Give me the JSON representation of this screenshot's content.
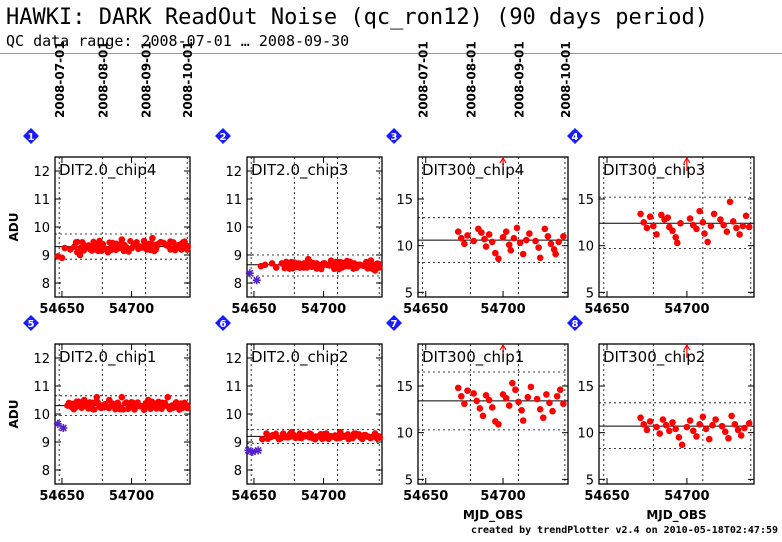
{
  "header": {
    "title": "HAWKI: DARK ReadOut Noise (qc_ron12) (90 days period)",
    "subtitle": "QC data range: 2008-07-01 … 2008-09-30"
  },
  "footer": "created by trendPlotter v2.4 on 2010-05-18T02:47:59",
  "colors": {
    "point": "#ff0000",
    "outlier": "#5522cc",
    "badge": "#1a1aff",
    "line": "#000000"
  },
  "date_labels": [
    "2008-07-01",
    "2008-08-01",
    "2008-09-01",
    "2008-10-01"
  ],
  "date_positions_mjd": [
    54648,
    54679,
    54710,
    54740
  ],
  "chart_data": [
    {
      "type": "scatter",
      "badge": "1",
      "title": "DIT2.0_chip4",
      "ylabel": "ADU",
      "xlabel": "",
      "xlim": [
        54645,
        54742
      ],
      "ylim": [
        7.5,
        12.5
      ],
      "xticks": [
        54650,
        54700
      ],
      "yticks": [
        8,
        9,
        10,
        11,
        12
      ],
      "median": 9.3,
      "band": [
        8.85,
        9.75
      ],
      "outliers": [],
      "dense": [
        54660,
        54741
      ],
      "points": [
        [
          54647,
          8.95
        ],
        [
          54650,
          8.9
        ],
        [
          54652,
          9.25
        ],
        [
          54656,
          9.2
        ],
        [
          54659,
          9.3
        ],
        [
          54661,
          9.1
        ],
        [
          54663,
          9.0
        ],
        [
          54666,
          9.35
        ],
        [
          54670,
          9.25
        ],
        [
          54672,
          9.3
        ],
        [
          54675,
          9.4
        ],
        [
          54676,
          9.15
        ],
        [
          54677,
          9.5
        ],
        [
          54679,
          9.25
        ],
        [
          54683,
          9.1
        ],
        [
          54686,
          9.3
        ],
        [
          54689,
          9.4
        ],
        [
          54691,
          9.25
        ],
        [
          54693,
          9.55
        ],
        [
          54695,
          9.35
        ],
        [
          54697,
          9.2
        ],
        [
          54702,
          9.4
        ],
        [
          54706,
          9.3
        ],
        [
          54709,
          9.5
        ],
        [
          54711,
          9.2
        ],
        [
          54713,
          9.4
        ],
        [
          54715,
          9.6
        ],
        [
          54718,
          9.3
        ],
        [
          54725,
          9.35
        ],
        [
          54728,
          9.2
        ],
        [
          54730,
          9.45
        ],
        [
          54732,
          9.3
        ],
        [
          54734,
          9.25
        ],
        [
          54736,
          9.4
        ],
        [
          54738,
          9.3
        ],
        [
          54740,
          9.2
        ]
      ]
    },
    {
      "type": "scatter",
      "badge": "2",
      "title": "DIT2.0_chip3",
      "ylabel": "",
      "xlabel": "",
      "xlim": [
        54645,
        54742
      ],
      "ylim": [
        7.5,
        12.5
      ],
      "xticks": [
        54650,
        54700
      ],
      "yticks": [
        8,
        9,
        10,
        11,
        12
      ],
      "median": 8.65,
      "band": [
        8.25,
        9.0
      ],
      "outliers": [
        [
          54647,
          8.35
        ],
        [
          54652,
          8.1
        ]
      ],
      "dense": [
        54672,
        54741
      ],
      "points": [
        [
          54655,
          8.6
        ],
        [
          54658,
          8.65
        ],
        [
          54663,
          8.7
        ],
        [
          54666,
          8.55
        ],
        [
          54670,
          8.7
        ],
        [
          54674,
          8.6
        ],
        [
          54677,
          8.75
        ],
        [
          54680,
          8.7
        ],
        [
          54683,
          8.55
        ],
        [
          54686,
          8.7
        ],
        [
          54689,
          8.85
        ],
        [
          54692,
          8.6
        ],
        [
          54695,
          8.7
        ],
        [
          54700,
          8.65
        ],
        [
          54705,
          8.7
        ],
        [
          54708,
          8.6
        ],
        [
          54712,
          8.75
        ],
        [
          54715,
          8.65
        ],
        [
          54718,
          8.6
        ],
        [
          54722,
          8.7
        ],
        [
          54726,
          8.65
        ],
        [
          54730,
          8.6
        ],
        [
          54734,
          8.8
        ],
        [
          54737,
          8.45
        ],
        [
          54740,
          8.55
        ]
      ]
    },
    {
      "type": "scatter",
      "badge": "3",
      "title": "DIT300_chip4",
      "ylabel": "",
      "xlabel": "",
      "xlim": [
        54645,
        54742
      ],
      "ylim": [
        4.5,
        19.5
      ],
      "xticks": [
        54650,
        54700
      ],
      "yticks": [
        5,
        10,
        15
      ],
      "median": 10.6,
      "band": [
        8.2,
        13.0
      ],
      "outliers": [],
      "dense": [],
      "arrow": 54700,
      "points": [
        [
          54671,
          11.5
        ],
        [
          54673,
          10.8
        ],
        [
          54675,
          10.2
        ],
        [
          54677,
          11.1
        ],
        [
          54681,
          10.5
        ],
        [
          54684,
          11.8
        ],
        [
          54686,
          11.4
        ],
        [
          54688,
          10.7
        ],
        [
          54689,
          9.9
        ],
        [
          54691,
          11.2
        ],
        [
          54693,
          10.4
        ],
        [
          54695,
          9.2
        ],
        [
          54697,
          8.6
        ],
        [
          54700,
          10.9
        ],
        [
          54702,
          11.5
        ],
        [
          54704,
          10.1
        ],
        [
          54705,
          9.5
        ],
        [
          54707,
          10.8
        ],
        [
          54709,
          11.9
        ],
        [
          54711,
          10.3
        ],
        [
          54713,
          9.1
        ],
        [
          54715,
          10.6
        ],
        [
          54717,
          11.3
        ],
        [
          54721,
          10.5
        ],
        [
          54723,
          9.8
        ],
        [
          54724,
          8.7
        ],
        [
          54727,
          11.8
        ],
        [
          54729,
          11.0
        ],
        [
          54731,
          10.2
        ],
        [
          54733,
          9.6
        ],
        [
          54734,
          9.1
        ],
        [
          54736,
          10.4
        ],
        [
          54739,
          11.0
        ]
      ]
    },
    {
      "type": "scatter",
      "badge": "4",
      "title": "DIT300_chip3",
      "ylabel": "",
      "xlabel": "",
      "xlim": [
        54645,
        54742
      ],
      "ylim": [
        4.5,
        19.5
      ],
      "xticks": [
        54650,
        54700
      ],
      "yticks": [
        5,
        10,
        15
      ],
      "median": 12.4,
      "band": [
        9.7,
        15.2
      ],
      "outliers": [],
      "dense": [],
      "arrow": 54700,
      "points": [
        [
          54671,
          13.4
        ],
        [
          54673,
          12.5
        ],
        [
          54675,
          11.9
        ],
        [
          54677,
          13.1
        ],
        [
          54679,
          12.1
        ],
        [
          54681,
          11.2
        ],
        [
          54684,
          13.3
        ],
        [
          54686,
          12.8
        ],
        [
          54688,
          13.0
        ],
        [
          54689,
          12.0
        ],
        [
          54691,
          11.6
        ],
        [
          54693,
          10.9
        ],
        [
          54694,
          10.3
        ],
        [
          54696,
          12.4
        ],
        [
          54702,
          12.9
        ],
        [
          54704,
          12.2
        ],
        [
          54706,
          11.8
        ],
        [
          54708,
          13.7
        ],
        [
          54710,
          12.5
        ],
        [
          54711,
          11.3
        ],
        [
          54713,
          10.4
        ],
        [
          54715,
          12.1
        ],
        [
          54717,
          13.4
        ],
        [
          54721,
          12.8
        ],
        [
          54723,
          12.2
        ],
        [
          54725,
          11.5
        ],
        [
          54727,
          14.7
        ],
        [
          54729,
          12.6
        ],
        [
          54731,
          11.9
        ],
        [
          54733,
          11.2
        ],
        [
          54735,
          12.1
        ],
        [
          54737,
          13.2
        ],
        [
          54739,
          12.0
        ]
      ]
    },
    {
      "type": "scatter",
      "badge": "5",
      "title": "DIT2.0_chip1",
      "ylabel": "ADU",
      "xlabel": "",
      "xlim": [
        54645,
        54742
      ],
      "ylim": [
        7.5,
        12.5
      ],
      "xticks": [
        54650,
        54700
      ],
      "yticks": [
        8,
        9,
        10,
        11,
        12
      ],
      "median": 10.3,
      "band": [
        9.95,
        10.65
      ],
      "outliers": [
        [
          54647,
          9.65
        ],
        [
          54651,
          9.5
        ]
      ],
      "dense": [
        54655,
        54741
      ],
      "points": [
        [
          54654,
          10.3
        ],
        [
          54657,
          10.25
        ],
        [
          54660,
          10.4
        ],
        [
          54663,
          10.3
        ],
        [
          54666,
          10.5
        ],
        [
          54669,
          10.2
        ],
        [
          54672,
          10.4
        ],
        [
          54675,
          10.6
        ],
        [
          54678,
          10.3
        ],
        [
          54681,
          10.35
        ],
        [
          54684,
          10.5
        ],
        [
          54687,
          10.3
        ],
        [
          54690,
          10.4
        ],
        [
          54693,
          10.6
        ],
        [
          54697,
          10.35
        ],
        [
          54701,
          10.4
        ],
        [
          54705,
          10.3
        ],
        [
          54709,
          10.15
        ],
        [
          54712,
          10.5
        ],
        [
          54715,
          10.3
        ],
        [
          54718,
          10.2
        ],
        [
          54722,
          10.4
        ],
        [
          54726,
          10.6
        ],
        [
          54729,
          10.3
        ],
        [
          54732,
          10.4
        ],
        [
          54735,
          10.25
        ],
        [
          54738,
          10.4
        ],
        [
          54740,
          10.3
        ]
      ]
    },
    {
      "type": "scatter",
      "badge": "6",
      "title": "DIT2.0_chip2",
      "ylabel": "",
      "xlabel": "",
      "xlim": [
        54645,
        54742
      ],
      "ylim": [
        7.5,
        12.5
      ],
      "xticks": [
        54650,
        54700
      ],
      "yticks": [
        8,
        9,
        10,
        11,
        12
      ],
      "median": 9.2,
      "band": [
        8.95,
        9.45
      ],
      "outliers": [
        [
          54646,
          8.7
        ],
        [
          54649,
          8.65
        ],
        [
          54653,
          8.7
        ]
      ],
      "dense": [
        54660,
        54741
      ],
      "points": [
        [
          54656,
          9.1
        ],
        [
          54659,
          9.3
        ],
        [
          54662,
          9.2
        ],
        [
          54665,
          9.25
        ],
        [
          54668,
          9.1
        ],
        [
          54671,
          9.3
        ],
        [
          54674,
          9.2
        ],
        [
          54677,
          9.35
        ],
        [
          54680,
          9.15
        ],
        [
          54683,
          9.3
        ],
        [
          54686,
          9.2
        ],
        [
          54690,
          9.3
        ],
        [
          54694,
          9.1
        ],
        [
          54698,
          9.25
        ],
        [
          54702,
          9.3
        ],
        [
          54706,
          9.2
        ],
        [
          54709,
          9.15
        ],
        [
          54712,
          9.35
        ],
        [
          54715,
          9.2
        ],
        [
          54718,
          9.1
        ],
        [
          54722,
          9.3
        ],
        [
          54726,
          9.2
        ],
        [
          54730,
          9.25
        ],
        [
          54734,
          9.15
        ],
        [
          54737,
          9.3
        ],
        [
          54740,
          9.2
        ]
      ]
    },
    {
      "type": "scatter",
      "badge": "7",
      "title": "DIT300_chip1",
      "ylabel": "",
      "xlabel": "MJD_OBS",
      "xlim": [
        54645,
        54742
      ],
      "ylim": [
        4.5,
        19.5
      ],
      "xticks": [
        54650,
        54700
      ],
      "yticks": [
        5,
        10,
        15
      ],
      "median": 13.4,
      "band": [
        10.3,
        16.5
      ],
      "outliers": [],
      "dense": [],
      "arrow": 54700,
      "points": [
        [
          54671,
          14.8
        ],
        [
          54673,
          13.9
        ],
        [
          54675,
          13.1
        ],
        [
          54677,
          14.5
        ],
        [
          54681,
          14.2
        ],
        [
          54683,
          13.4
        ],
        [
          54685,
          12.6
        ],
        [
          54687,
          11.8
        ],
        [
          54689,
          14.0
        ],
        [
          54691,
          13.5
        ],
        [
          54693,
          12.7
        ],
        [
          54695,
          11.2
        ],
        [
          54697,
          10.9
        ],
        [
          54700,
          14.1
        ],
        [
          54702,
          13.7
        ],
        [
          54704,
          12.9
        ],
        [
          54706,
          15.3
        ],
        [
          54708,
          14.6
        ],
        [
          54710,
          13.3
        ],
        [
          54712,
          12.4
        ],
        [
          54713,
          11.3
        ],
        [
          54716,
          13.8
        ],
        [
          54718,
          14.9
        ],
        [
          54722,
          13.6
        ],
        [
          54724,
          12.5
        ],
        [
          54726,
          11.6
        ],
        [
          54728,
          14.1
        ],
        [
          54730,
          13.2
        ],
        [
          54732,
          12.3
        ],
        [
          54735,
          13.9
        ],
        [
          54737,
          14.6
        ],
        [
          54739,
          13.1
        ]
      ]
    },
    {
      "type": "scatter",
      "badge": "8",
      "title": "DIT300_chip2",
      "ylabel": "",
      "xlabel": "MJD_OBS",
      "xlim": [
        54645,
        54742
      ],
      "ylim": [
        4.5,
        19.5
      ],
      "xticks": [
        54650,
        54700
      ],
      "yticks": [
        5,
        10,
        15
      ],
      "median": 10.7,
      "band": [
        8.3,
        13.2
      ],
      "outliers": [],
      "dense": [],
      "arrow": 54700,
      "points": [
        [
          54671,
          11.6
        ],
        [
          54673,
          10.9
        ],
        [
          54675,
          10.3
        ],
        [
          54677,
          11.2
        ],
        [
          54681,
          10.6
        ],
        [
          54683,
          9.9
        ],
        [
          54685,
          11.4
        ],
        [
          54687,
          10.8
        ],
        [
          54689,
          10.2
        ],
        [
          54691,
          11.1
        ],
        [
          54693,
          10.4
        ],
        [
          54695,
          9.5
        ],
        [
          54697,
          8.7
        ],
        [
          54700,
          10.6
        ],
        [
          54702,
          11.3
        ],
        [
          54704,
          10.2
        ],
        [
          54706,
          9.6
        ],
        [
          54708,
          10.9
        ],
        [
          54710,
          11.7
        ],
        [
          54712,
          10.4
        ],
        [
          54714,
          9.3
        ],
        [
          54716,
          10.8
        ],
        [
          54718,
          11.4
        ],
        [
          54722,
          10.7
        ],
        [
          54724,
          10.1
        ],
        [
          54726,
          9.4
        ],
        [
          54728,
          11.8
        ],
        [
          54730,
          10.9
        ],
        [
          54732,
          10.3
        ],
        [
          54734,
          9.7
        ],
        [
          54736,
          10.5
        ],
        [
          54739,
          11.0
        ]
      ]
    }
  ]
}
